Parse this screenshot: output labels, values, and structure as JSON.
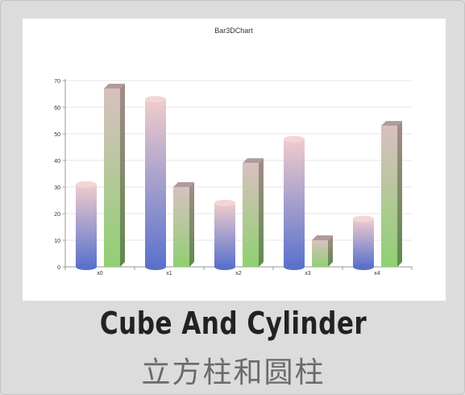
{
  "caption": {
    "title": "Cube And Cylinder",
    "subtitle": "立方柱和圆柱"
  },
  "chart_data": {
    "type": "bar",
    "title": "Bar3DChart",
    "categories": [
      "x0",
      "x1",
      "x2",
      "x3",
      "x4"
    ],
    "series": [
      {
        "shape": "cylinder",
        "values": [
          31,
          63,
          24,
          48,
          18
        ],
        "gradient_top": "#f0cccc",
        "gradient_bottom": "#5a72cc"
      },
      {
        "shape": "cube",
        "values": [
          67,
          30,
          39,
          10,
          53
        ],
        "gradient_top": "#d8c0c0",
        "gradient_bottom": "#8fd072"
      }
    ],
    "ylim": [
      0,
      70
    ],
    "yticks": [
      0,
      10,
      20,
      30,
      40,
      50,
      60,
      70
    ],
    "grid": true
  }
}
